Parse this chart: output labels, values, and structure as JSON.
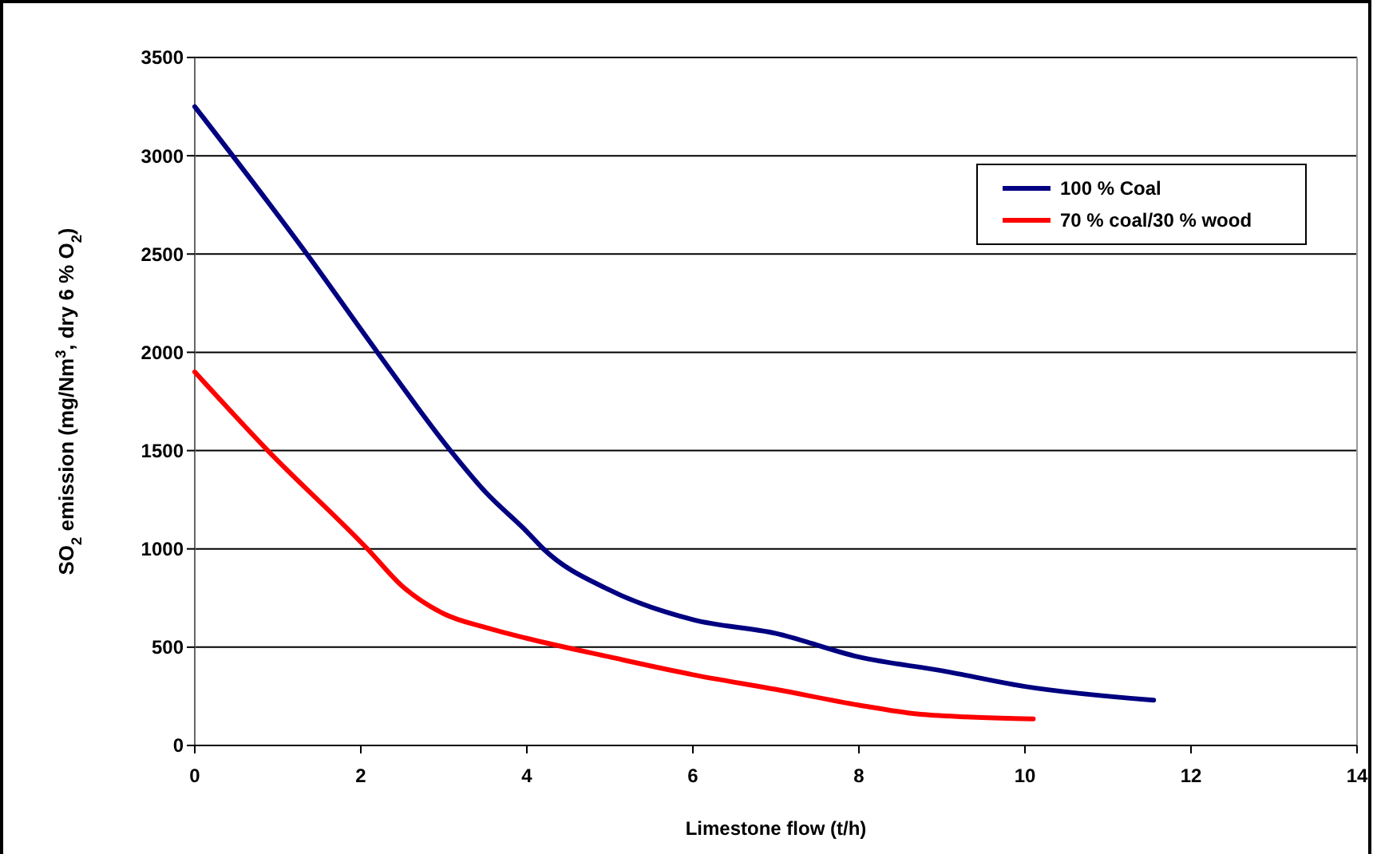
{
  "chart_data": {
    "type": "line",
    "xlabel": "Limestone flow  (t/h)",
    "ylabel": "SO$_{2}$ emission (mg/Nm$^{3}$, dry 6 % O$_{2}$)",
    "xlim": [
      0,
      14
    ],
    "xticks": [
      0,
      2,
      4,
      6,
      8,
      10,
      12,
      14
    ],
    "ylim": [
      0,
      3500
    ],
    "yticks": [
      0,
      500,
      1000,
      1500,
      2000,
      2500,
      3000,
      3500
    ],
    "grid": "y",
    "legend": "top right",
    "line_style": "solid",
    "marker": "none",
    "series": [
      {
        "name": "100 % Coal",
        "color": "#000080",
        "x": [
          0,
          1.35,
          2.2,
          3.08,
          3.5,
          4,
          4.2,
          5,
          6,
          7,
          8,
          9,
          10,
          11.55
        ],
        "values": [
          3250,
          2500,
          2000,
          1500,
          1290,
          1088,
          1000,
          790,
          640,
          570,
          450,
          380,
          300,
          230
        ]
      },
      {
        "name": "70 % coal/30 % wood",
        "color": "#ff0000",
        "x": [
          0,
          0.88,
          2.08,
          2.5,
          3,
          3.5,
          4,
          5,
          6,
          7,
          8,
          8.7,
          9.3,
          10.1
        ],
        "values": [
          1900,
          1500,
          1000,
          810,
          670,
          600,
          545,
          450,
          360,
          285,
          205,
          160,
          145,
          135
        ]
      }
    ]
  }
}
